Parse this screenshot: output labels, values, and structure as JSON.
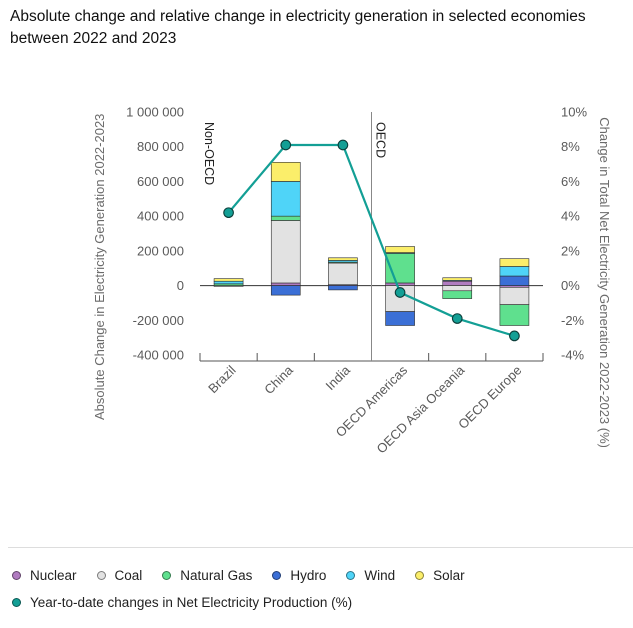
{
  "title": "Absolute change and relative change in electricity generation in selected economies between 2022 and 2023",
  "chart_data": {
    "type": "bar",
    "stacked": true,
    "categories": [
      "Brazil",
      "China",
      "India",
      "OECD Americas",
      "OECD Asia Oceania",
      "OECD Europe"
    ],
    "region_labels": [
      "Non-OECD",
      "OECD"
    ],
    "ylabel_left": "Absolute Change in Electricity Generation 2022-2023",
    "ylabel_right": "Change in Total Net Electricity Generation 2022-2023 (%)",
    "ylim_left": [
      -400000,
      1000000
    ],
    "ylim_right": [
      -4,
      10
    ],
    "yticks_left": [
      "1 000 000",
      "800 000",
      "600 000",
      "400 000",
      "200 000",
      "0",
      "-200 000",
      "-400 000"
    ],
    "yticks_right": [
      "10%",
      "8%",
      "6%",
      "4%",
      "2%",
      "0%",
      "-2%",
      "-4%"
    ],
    "series": [
      {
        "name": "Nuclear",
        "color": "#b07bc0",
        "values": [
          0,
          15000,
          5000,
          15000,
          25000,
          -10000
        ]
      },
      {
        "name": "Coal",
        "color": "#e2e2e2",
        "values": [
          -5000,
          360000,
          125000,
          -150000,
          -30000,
          -100000
        ]
      },
      {
        "name": "Natural Gas",
        "color": "#5fe08e",
        "values": [
          10000,
          25000,
          5000,
          170000,
          -45000,
          -120000
        ]
      },
      {
        "name": "Hydro",
        "color": "#3b6fd6",
        "values": [
          0,
          -55000,
          -25000,
          -80000,
          0,
          55000
        ]
      },
      {
        "name": "Wind",
        "color": "#4fd4f8",
        "values": [
          15000,
          200000,
          10000,
          5000,
          5000,
          55000
        ]
      },
      {
        "name": "Solar",
        "color": "#fbee6a",
        "values": [
          15000,
          110000,
          15000,
          35000,
          15000,
          45000
        ]
      }
    ],
    "line_series": {
      "name": "Year-to-date changes in Net Electricity Production (%)",
      "color": "#139f95",
      "values": [
        4.2,
        8.1,
        8.1,
        -0.4,
        -1.9,
        -2.9
      ]
    },
    "legend_position": "bottom"
  },
  "legend": {
    "items": [
      {
        "label": "Nuclear",
        "color": "#b07bc0"
      },
      {
        "label": "Coal",
        "color": "#e2e2e2"
      },
      {
        "label": "Natural Gas",
        "color": "#5fe08e"
      },
      {
        "label": "Hydro",
        "color": "#3b6fd6"
      },
      {
        "label": "Wind",
        "color": "#4fd4f8"
      },
      {
        "label": "Solar",
        "color": "#fbee6a"
      }
    ],
    "line_item": {
      "label": "Year-to-date changes in Net Electricity Production (%)",
      "color": "#139f95"
    }
  }
}
